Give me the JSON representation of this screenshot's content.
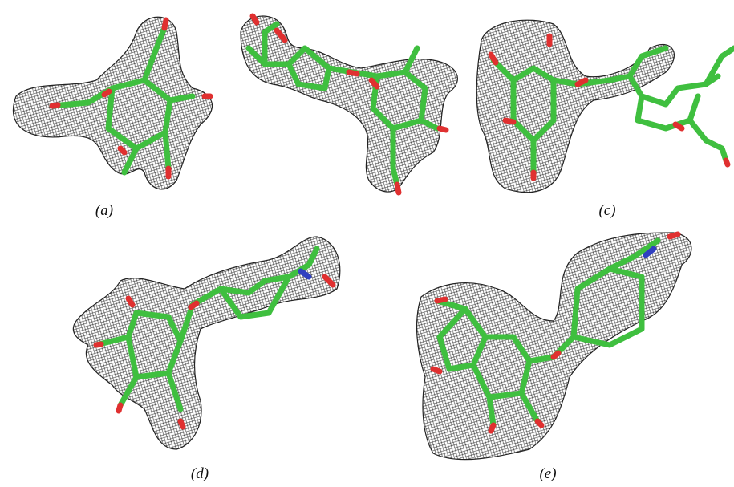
{
  "panels": [
    {
      "label": "(a)"
    },
    {
      "label": "(c)"
    },
    {
      "label": "(d)"
    },
    {
      "label": "(e)"
    }
  ]
}
